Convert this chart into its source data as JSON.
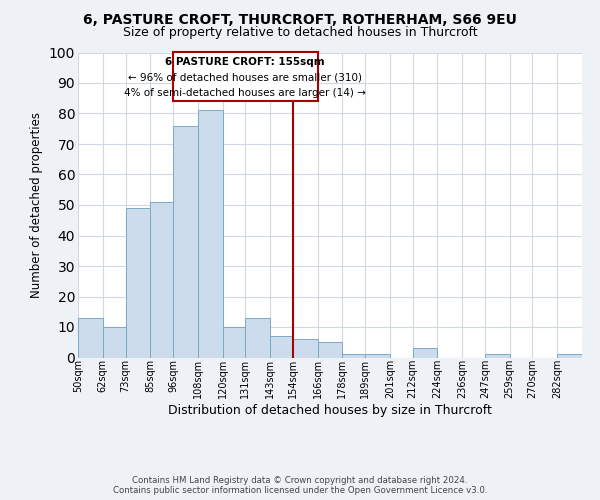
{
  "title": "6, PASTURE CROFT, THURCROFT, ROTHERHAM, S66 9EU",
  "subtitle": "Size of property relative to detached houses in Thurcroft",
  "xlabel": "Distribution of detached houses by size in Thurcroft",
  "ylabel": "Number of detached properties",
  "bin_labels": [
    "50sqm",
    "62sqm",
    "73sqm",
    "85sqm",
    "96sqm",
    "108sqm",
    "120sqm",
    "131sqm",
    "143sqm",
    "154sqm",
    "166sqm",
    "178sqm",
    "189sqm",
    "201sqm",
    "212sqm",
    "224sqm",
    "236sqm",
    "247sqm",
    "259sqm",
    "270sqm",
    "282sqm"
  ],
  "bin_edges": [
    50,
    62,
    73,
    85,
    96,
    108,
    120,
    131,
    143,
    154,
    166,
    178,
    189,
    201,
    212,
    224,
    236,
    247,
    259,
    270,
    282
  ],
  "bar_heights": [
    13,
    10,
    49,
    51,
    76,
    81,
    10,
    13,
    7,
    6,
    5,
    1,
    1,
    0,
    3,
    0,
    0,
    1,
    0,
    0,
    1
  ],
  "bar_color": "#ccdcec",
  "bar_edgecolor": "#7aaac8",
  "ylim": [
    0,
    100
  ],
  "yticks": [
    0,
    10,
    20,
    30,
    40,
    50,
    60,
    70,
    80,
    90,
    100
  ],
  "property_line_x": 154,
  "property_line_color": "#aa0000",
  "annotation_title": "6 PASTURE CROFT: 155sqm",
  "annotation_line1": "← 96% of detached houses are smaller (310)",
  "annotation_line2": "4% of semi-detached houses are larger (14) →",
  "annotation_box_color": "#ffffff",
  "annotation_box_edgecolor": "#aa0000",
  "footer_line1": "Contains HM Land Registry data © Crown copyright and database right 2024.",
  "footer_line2": "Contains public sector information licensed under the Open Government Licence v3.0.",
  "background_color": "#eef2f7",
  "plot_background_color": "#ffffff",
  "title_fontsize": 10,
  "subtitle_fontsize": 9,
  "grid_color": "#d0d8e4"
}
